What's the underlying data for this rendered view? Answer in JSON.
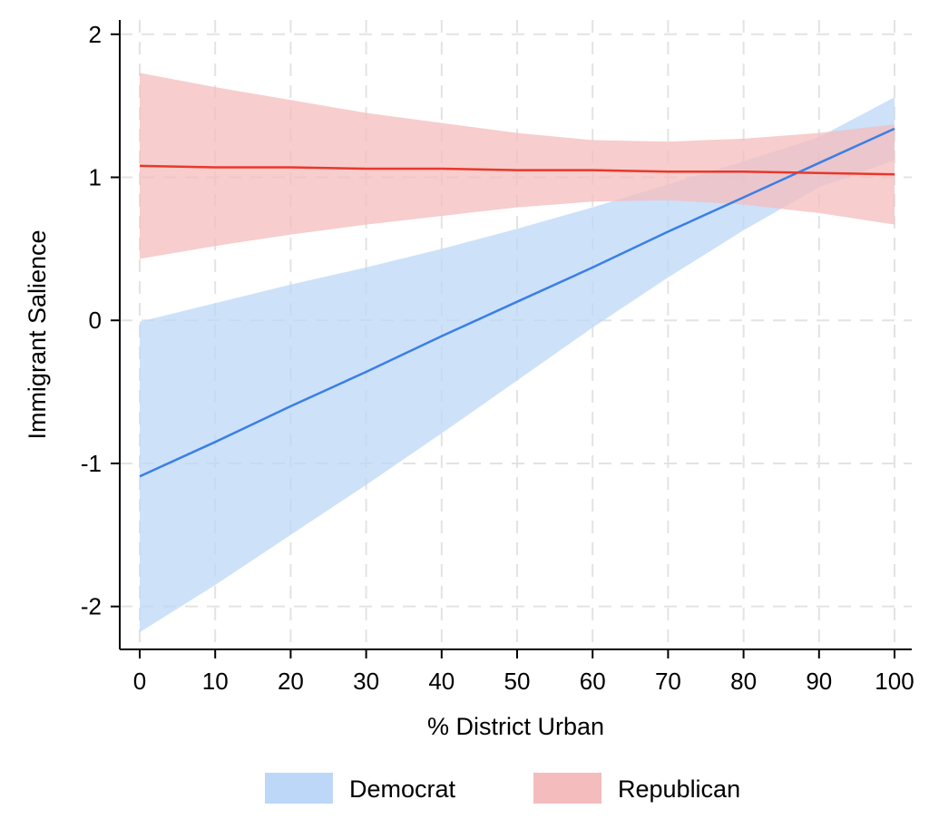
{
  "chart_data": {
    "type": "line",
    "title": "",
    "xlabel": "% District Urban",
    "ylabel": "Immigrant Salience",
    "xlim": [
      0,
      100
    ],
    "ylim": [
      -2.3,
      2.1
    ],
    "x_ticks": [
      0,
      10,
      20,
      30,
      40,
      50,
      60,
      70,
      80,
      90,
      100
    ],
    "y_ticks": [
      -2,
      -1,
      0,
      1,
      2
    ],
    "grid": true,
    "grid_style": "dashed",
    "legend_position": "bottom",
    "series": [
      {
        "name": "Democrat",
        "line_color": "#3a7fe6",
        "band_color": "#bcd7f7",
        "x": [
          0,
          10,
          20,
          30,
          40,
          50,
          60,
          70,
          80,
          90,
          100
        ],
        "y": [
          -1.09,
          -0.85,
          -0.6,
          -0.36,
          -0.11,
          0.13,
          0.37,
          0.62,
          0.86,
          1.1,
          1.34
        ],
        "lower": [
          -2.18,
          -1.85,
          -1.5,
          -1.15,
          -0.79,
          -0.42,
          -0.05,
          0.3,
          0.63,
          0.93,
          1.12
        ],
        "upper": [
          -0.01,
          0.12,
          0.25,
          0.37,
          0.5,
          0.64,
          0.79,
          0.95,
          1.11,
          1.28,
          1.56
        ]
      },
      {
        "name": "Republican",
        "line_color": "#e8382b",
        "band_color": "#f4bcbc",
        "x": [
          0,
          10,
          20,
          30,
          40,
          50,
          60,
          70,
          80,
          90,
          100
        ],
        "y": [
          1.08,
          1.07,
          1.07,
          1.06,
          1.06,
          1.05,
          1.05,
          1.04,
          1.04,
          1.03,
          1.02
        ],
        "lower": [
          0.43,
          0.52,
          0.6,
          0.67,
          0.73,
          0.79,
          0.83,
          0.84,
          0.81,
          0.75,
          0.67
        ],
        "upper": [
          1.73,
          1.63,
          1.54,
          1.45,
          1.38,
          1.31,
          1.26,
          1.25,
          1.27,
          1.31,
          1.37
        ]
      }
    ]
  }
}
